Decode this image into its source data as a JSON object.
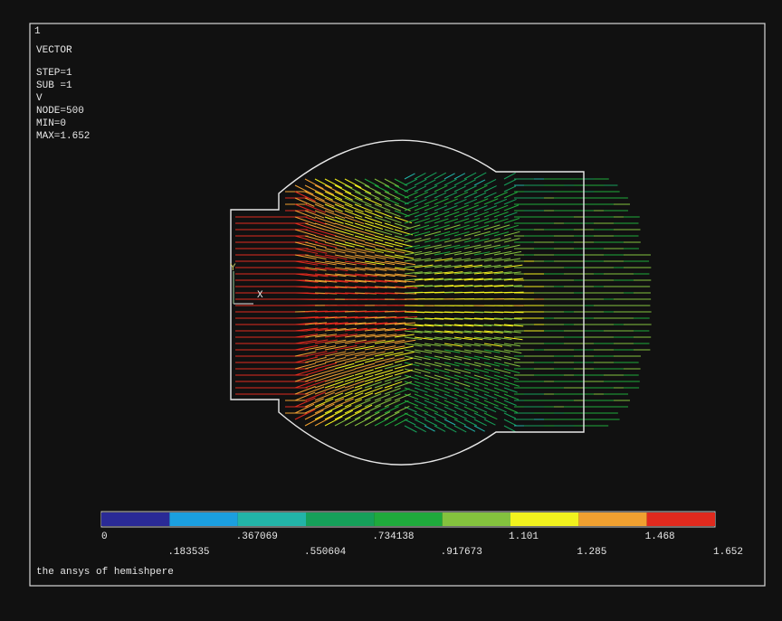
{
  "window_number": "1",
  "plot_info": [
    "VECTOR",
    "STEP=1",
    "SUB =1",
    "V",
    "NODE=500",
    "MIN=0",
    "MAX=1.652"
  ],
  "triad": {
    "y": "Y",
    "x": "X"
  },
  "legend": [
    {
      "label": "0",
      "color": "#2a2a96"
    },
    {
      "label": ".183535",
      "color": "#1b9fe0"
    },
    {
      "label": ".367069",
      "color": "#22b4a8"
    },
    {
      "label": ".550604",
      "color": "#16a05a"
    },
    {
      "label": ".734138",
      "color": "#1faa3c"
    },
    {
      "label": ".917673",
      "color": "#84c23e"
    },
    {
      "label": "1.101",
      "color": "#f2f21e"
    },
    {
      "label": "1.285",
      "color": "#f0a030"
    },
    {
      "label": "1.468",
      "color": "#e02a1e"
    },
    {
      "label": "1.652",
      "color": null
    }
  ],
  "caption": "the ansys of hemishpere"
}
